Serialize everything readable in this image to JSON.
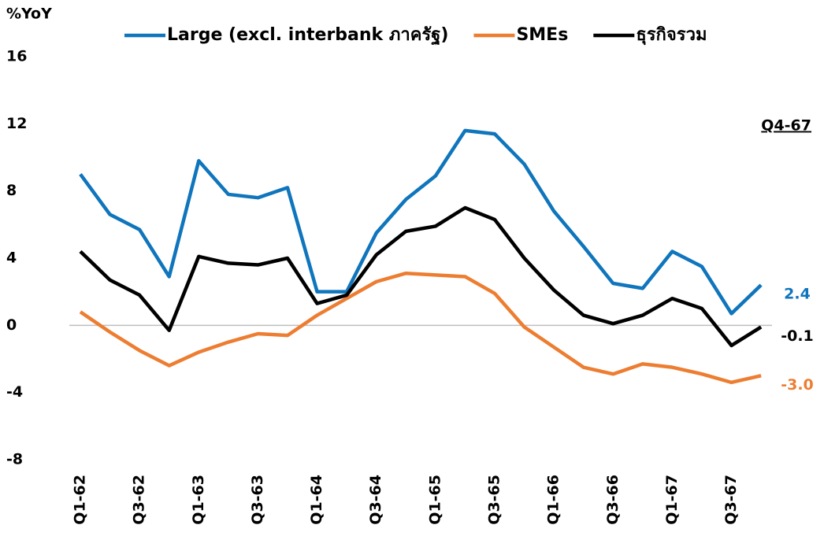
{
  "chart_data": {
    "type": "line",
    "y_label": "%YoY",
    "annotation": "Q4-67",
    "categories": [
      "Q1-62",
      null,
      "Q3-62",
      null,
      "Q1-63",
      null,
      "Q3-63",
      null,
      "Q1-64",
      null,
      "Q3-64",
      null,
      "Q1-65",
      null,
      "Q3-65",
      null,
      "Q1-66",
      null,
      "Q3-66",
      null,
      "Q1-67",
      null,
      "Q3-67",
      null
    ],
    "series": [
      {
        "name": "Large (excl. interbank ภาครัฐ)",
        "color": "#0f75bc",
        "values": [
          9.0,
          6.6,
          5.7,
          2.9,
          9.8,
          7.8,
          7.6,
          8.2,
          2.0,
          2.0,
          5.5,
          7.5,
          8.9,
          11.6,
          11.4,
          9.6,
          6.8,
          4.7,
          2.5,
          2.2,
          4.4,
          3.5,
          0.7,
          2.4
        ],
        "value_labels": [
          null,
          null,
          null,
          null,
          null,
          null,
          null,
          null,
          null,
          null,
          null,
          null,
          null,
          null,
          null,
          null,
          null,
          null,
          null,
          null,
          null,
          null,
          null,
          "2.4"
        ]
      },
      {
        "name": "SMEs",
        "color": "#ed7d31",
        "values": [
          0.8,
          -0.4,
          -1.5,
          -2.4,
          -1.6,
          -1.0,
          -0.5,
          -0.6,
          0.6,
          1.6,
          2.6,
          3.1,
          3.0,
          2.9,
          1.9,
          -0.1,
          -1.3,
          -2.5,
          -2.9,
          -2.3,
          -2.5,
          -2.9,
          -3.4,
          -3.0
        ],
        "value_labels": [
          null,
          null,
          null,
          null,
          null,
          null,
          null,
          null,
          null,
          null,
          null,
          null,
          null,
          null,
          null,
          null,
          null,
          null,
          null,
          null,
          null,
          null,
          null,
          "-3.0"
        ]
      },
      {
        "name": "ธุรกิจรวม",
        "color": "#000000",
        "values": [
          4.4,
          2.7,
          1.8,
          -0.3,
          4.1,
          3.7,
          3.6,
          4.0,
          1.3,
          1.8,
          4.2,
          5.6,
          5.9,
          7.0,
          6.3,
          4.0,
          2.1,
          0.6,
          0.1,
          0.6,
          1.6,
          1.0,
          -1.2,
          -0.1
        ],
        "value_labels": [
          null,
          null,
          null,
          null,
          null,
          null,
          null,
          null,
          null,
          null,
          null,
          null,
          null,
          null,
          null,
          null,
          null,
          null,
          null,
          null,
          null,
          null,
          null,
          "-0.1"
        ]
      }
    ],
    "ylim": [
      -8,
      16
    ],
    "yticks": [
      16,
      12,
      8,
      4,
      0,
      -4,
      -8
    ],
    "grid": false,
    "zero_line": true,
    "legend": "top"
  }
}
